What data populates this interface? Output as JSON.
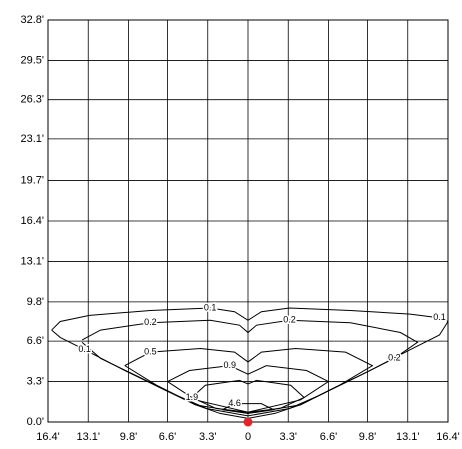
{
  "chart_data": {
    "type": "line",
    "xlim": [
      -16.4,
      16.4
    ],
    "ylim": [
      0,
      32.8
    ],
    "xticks": [
      {
        "value": -16.4,
        "label": "16.4'"
      },
      {
        "value": -13.1,
        "label": "13.1'"
      },
      {
        "value": -9.8,
        "label": "9.8'"
      },
      {
        "value": -6.6,
        "label": "6.6'"
      },
      {
        "value": -3.3,
        "label": "3.3'"
      },
      0,
      {
        "value": 3.3,
        "label": "3.3'"
      },
      {
        "value": 6.6,
        "label": "6.6'"
      },
      {
        "value": 9.8,
        "label": "9.8'"
      },
      {
        "value": 13.1,
        "label": "13.1'"
      },
      {
        "value": 16.4,
        "label": "16.4'"
      }
    ],
    "yticks": [
      {
        "value": 0,
        "label": "0.0'"
      },
      {
        "value": 3.3,
        "label": "3.3'"
      },
      {
        "value": 6.6,
        "label": "6.6'"
      },
      {
        "value": 9.8,
        "label": "9.8'"
      },
      {
        "value": 13.1,
        "label": "13.1'"
      },
      {
        "value": 16.4,
        "label": "16.4'"
      },
      {
        "value": 19.7,
        "label": "19.7'"
      },
      {
        "value": 23.1,
        "label": "23.1'"
      },
      {
        "value": 26.3,
        "label": "26.3'"
      },
      {
        "value": 29.5,
        "label": "29.5'"
      },
      {
        "value": 32.8,
        "label": "32.8'"
      }
    ],
    "grid": true,
    "series": [
      {
        "name": "0.1",
        "color": "#000000",
        "x": [
          -16.1,
          -15.4,
          -13.0,
          -8.0,
          -3.1,
          -1.1,
          0,
          1.1,
          3.4,
          8.4,
          13.3,
          15.7,
          16.4,
          15.7,
          13.3,
          10.0,
          6.7,
          4.3,
          2.2,
          0,
          -2.3,
          -4.3,
          -6.8,
          -10.1,
          -13.4,
          -15.4,
          -16.1
        ],
        "y": [
          7.5,
          8.2,
          8.7,
          9.1,
          9.3,
          9.0,
          8.3,
          9.0,
          9.3,
          9.1,
          8.8,
          8.5,
          8.2,
          7.1,
          5.9,
          4.2,
          2.6,
          1.4,
          0.7,
          0.3,
          0.7,
          1.4,
          2.6,
          4.2,
          5.9,
          6.9,
          7.5
        ]
      },
      {
        "name": "0.2",
        "color": "#000000",
        "x": [
          -13.6,
          -12.1,
          -8.0,
          -3.1,
          -0.7,
          0,
          0.7,
          3.4,
          8.4,
          12.5,
          13.9,
          12.0,
          9.2,
          5.9,
          3.4,
          0,
          -3.4,
          -5.9,
          -9.2,
          -12.1,
          -13.6
        ],
        "y": [
          6.7,
          7.5,
          8.1,
          8.3,
          7.9,
          7.3,
          7.9,
          8.3,
          8.1,
          7.3,
          6.5,
          5.2,
          3.8,
          2.2,
          1.1,
          0.5,
          1.1,
          2.2,
          3.8,
          5.2,
          6.5
        ]
      },
      {
        "name": "0.5",
        "color": "#000000",
        "x": [
          -10.1,
          -8.0,
          -3.9,
          -1.1,
          0,
          1.1,
          3.9,
          8.0,
          10.2,
          7.5,
          4.3,
          0,
          -4.3,
          -7.5,
          -10.1
        ],
        "y": [
          4.6,
          5.7,
          6.0,
          5.7,
          4.9,
          5.7,
          6.0,
          5.7,
          4.6,
          3.0,
          1.4,
          0.7,
          1.4,
          3.0,
          4.6
        ]
      },
      {
        "name": "0.9",
        "color": "#000000",
        "x": [
          -6.6,
          -4.8,
          -1.5,
          0,
          1.5,
          4.8,
          6.6,
          4.3,
          0,
          -4.3,
          -6.6
        ],
        "y": [
          3.3,
          4.2,
          4.6,
          3.9,
          4.6,
          4.2,
          3.3,
          1.8,
          0.8,
          1.8,
          3.3
        ]
      },
      {
        "name": "1.9",
        "color": "#000000",
        "x": [
          -4.6,
          -3.5,
          -0.7,
          0,
          0.7,
          3.5,
          4.6,
          2.6,
          0,
          -2.6,
          -4.6
        ],
        "y": [
          2.0,
          3.0,
          3.4,
          3.1,
          3.4,
          3.0,
          2.0,
          1.1,
          0.8,
          1.1,
          2.0
        ]
      },
      {
        "name": "4.6",
        "color": "#000000",
        "x": [
          -2.1,
          -1.1,
          0,
          1.1,
          2.1,
          0,
          -2.1
        ],
        "y": [
          1.0,
          1.5,
          1.5,
          1.5,
          1.0,
          0.7,
          1.0
        ]
      }
    ]
  }
}
